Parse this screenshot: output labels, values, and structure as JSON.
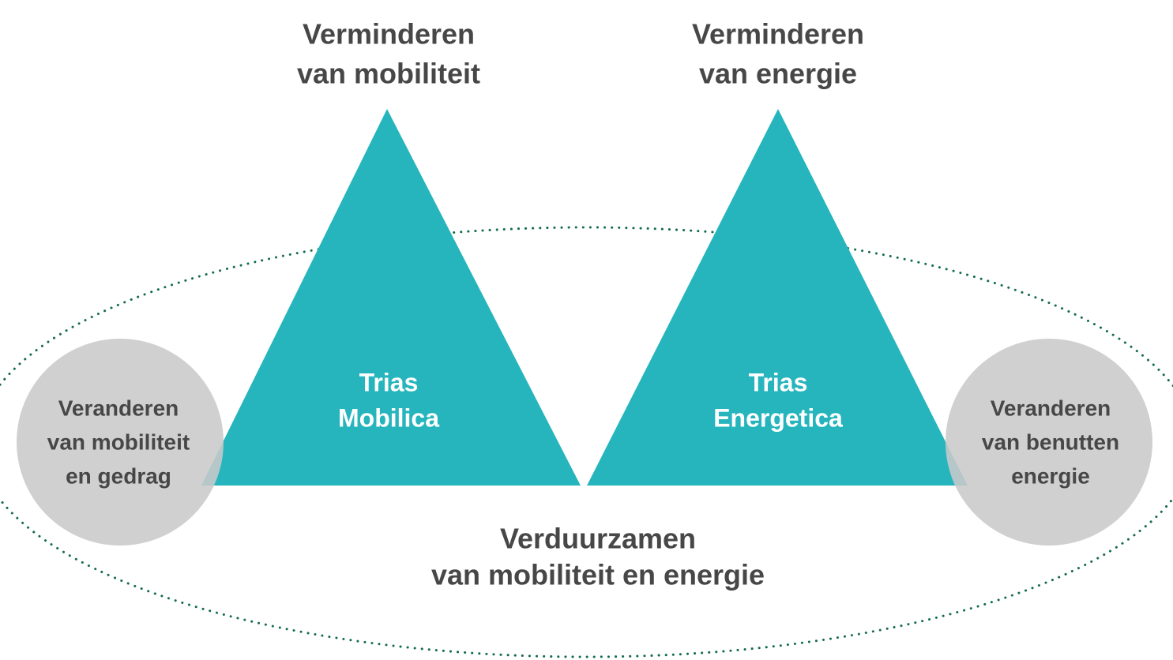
{
  "headings": [
    {
      "lines": [
        "Verminderen",
        "van mobiliteit"
      ]
    },
    {
      "lines": [
        "Verminderen",
        "van energie"
      ]
    }
  ],
  "triangles": [
    {
      "lines": [
        "Trias",
        "Mobilica"
      ]
    },
    {
      "lines": [
        "Trias",
        "Energetica"
      ]
    }
  ],
  "circles": [
    {
      "lines": [
        "Veranderen",
        "van mobiliteit",
        "en gedrag"
      ]
    },
    {
      "lines": [
        "Veranderen",
        "van benutten",
        "energie"
      ]
    }
  ],
  "footer": {
    "lines": [
      "Verduurzamen",
      "van mobiliteit en energie"
    ]
  }
}
